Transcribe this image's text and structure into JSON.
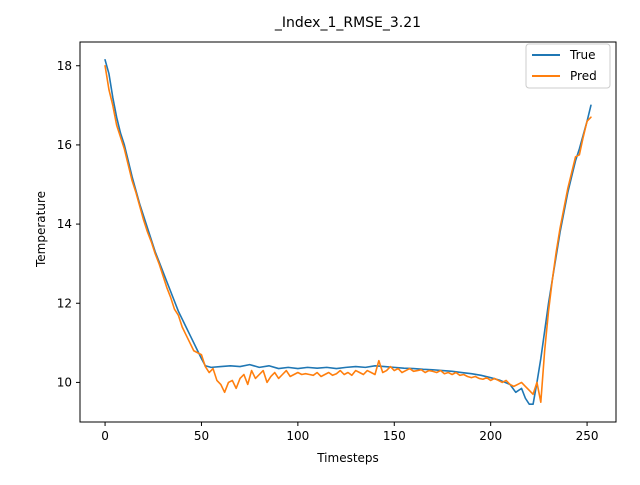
{
  "chart_data": {
    "type": "line",
    "title": "_Index_1_RMSE_3.21",
    "xlabel": "Timesteps",
    "ylabel": "Temperature",
    "xlim": [
      -13,
      265
    ],
    "ylim": [
      9.0,
      18.6
    ],
    "xticks": [
      0,
      50,
      100,
      150,
      200,
      250
    ],
    "yticks": [
      10,
      12,
      14,
      16,
      18
    ],
    "grid": false,
    "legend_position": "top-right",
    "series": [
      {
        "name": "True",
        "color": "#1f77b4",
        "points": [
          [
            0,
            18.15
          ],
          [
            2,
            17.8
          ],
          [
            4,
            17.2
          ],
          [
            6,
            16.7
          ],
          [
            8,
            16.3
          ],
          [
            10,
            16.0
          ],
          [
            12,
            15.6
          ],
          [
            14,
            15.2
          ],
          [
            16,
            14.85
          ],
          [
            18,
            14.5
          ],
          [
            20,
            14.2
          ],
          [
            22,
            13.9
          ],
          [
            24,
            13.6
          ],
          [
            26,
            13.3
          ],
          [
            28,
            13.05
          ],
          [
            30,
            12.8
          ],
          [
            32,
            12.55
          ],
          [
            34,
            12.3
          ],
          [
            36,
            12.05
          ],
          [
            38,
            11.8
          ],
          [
            40,
            11.6
          ],
          [
            42,
            11.4
          ],
          [
            44,
            11.2
          ],
          [
            46,
            11.0
          ],
          [
            48,
            10.8
          ],
          [
            50,
            10.6
          ],
          [
            52,
            10.42
          ],
          [
            55,
            10.38
          ],
          [
            60,
            10.4
          ],
          [
            65,
            10.42
          ],
          [
            70,
            10.4
          ],
          [
            75,
            10.45
          ],
          [
            80,
            10.38
          ],
          [
            85,
            10.42
          ],
          [
            90,
            10.35
          ],
          [
            95,
            10.38
          ],
          [
            100,
            10.35
          ],
          [
            105,
            10.38
          ],
          [
            110,
            10.36
          ],
          [
            115,
            10.38
          ],
          [
            120,
            10.35
          ],
          [
            125,
            10.38
          ],
          [
            130,
            10.4
          ],
          [
            135,
            10.38
          ],
          [
            140,
            10.42
          ],
          [
            145,
            10.4
          ],
          [
            150,
            10.38
          ],
          [
            155,
            10.36
          ],
          [
            160,
            10.35
          ],
          [
            165,
            10.33
          ],
          [
            170,
            10.32
          ],
          [
            175,
            10.3
          ],
          [
            180,
            10.28
          ],
          [
            185,
            10.25
          ],
          [
            190,
            10.22
          ],
          [
            195,
            10.18
          ],
          [
            200,
            10.12
          ],
          [
            205,
            10.05
          ],
          [
            210,
            9.95
          ],
          [
            213,
            9.75
          ],
          [
            216,
            9.85
          ],
          [
            218,
            9.6
          ],
          [
            220,
            9.45
          ],
          [
            222,
            9.45
          ],
          [
            224,
            10.0
          ],
          [
            226,
            10.6
          ],
          [
            228,
            11.3
          ],
          [
            230,
            12.0
          ],
          [
            232,
            12.6
          ],
          [
            234,
            13.2
          ],
          [
            236,
            13.8
          ],
          [
            238,
            14.3
          ],
          [
            240,
            14.8
          ],
          [
            242,
            15.2
          ],
          [
            244,
            15.6
          ],
          [
            246,
            15.9
          ],
          [
            248,
            16.25
          ],
          [
            250,
            16.6
          ],
          [
            252,
            17.0
          ]
        ]
      },
      {
        "name": "Pred",
        "color": "#ff7f0e",
        "points": [
          [
            0,
            18.0
          ],
          [
            2,
            17.4
          ],
          [
            4,
            17.0
          ],
          [
            6,
            16.5
          ],
          [
            8,
            16.2
          ],
          [
            10,
            15.9
          ],
          [
            12,
            15.5
          ],
          [
            14,
            15.1
          ],
          [
            16,
            14.8
          ],
          [
            18,
            14.45
          ],
          [
            20,
            14.1
          ],
          [
            22,
            13.8
          ],
          [
            24,
            13.55
          ],
          [
            26,
            13.25
          ],
          [
            28,
            13.0
          ],
          [
            30,
            12.7
          ],
          [
            32,
            12.4
          ],
          [
            34,
            12.15
          ],
          [
            36,
            11.85
          ],
          [
            38,
            11.7
          ],
          [
            40,
            11.4
          ],
          [
            42,
            11.2
          ],
          [
            44,
            11.0
          ],
          [
            46,
            10.8
          ],
          [
            48,
            10.75
          ],
          [
            50,
            10.7
          ],
          [
            52,
            10.4
          ],
          [
            54,
            10.25
          ],
          [
            56,
            10.35
          ],
          [
            58,
            10.05
          ],
          [
            60,
            9.95
          ],
          [
            62,
            9.75
          ],
          [
            64,
            10.0
          ],
          [
            66,
            10.05
          ],
          [
            68,
            9.85
          ],
          [
            70,
            10.1
          ],
          [
            72,
            10.2
          ],
          [
            74,
            9.95
          ],
          [
            76,
            10.3
          ],
          [
            78,
            10.1
          ],
          [
            80,
            10.2
          ],
          [
            82,
            10.3
          ],
          [
            84,
            10.0
          ],
          [
            86,
            10.15
          ],
          [
            88,
            10.25
          ],
          [
            90,
            10.1
          ],
          [
            92,
            10.2
          ],
          [
            94,
            10.3
          ],
          [
            96,
            10.15
          ],
          [
            98,
            10.2
          ],
          [
            100,
            10.25
          ],
          [
            102,
            10.2
          ],
          [
            104,
            10.22
          ],
          [
            106,
            10.2
          ],
          [
            108,
            10.18
          ],
          [
            110,
            10.25
          ],
          [
            112,
            10.15
          ],
          [
            114,
            10.2
          ],
          [
            116,
            10.25
          ],
          [
            118,
            10.18
          ],
          [
            120,
            10.22
          ],
          [
            122,
            10.3
          ],
          [
            124,
            10.2
          ],
          [
            126,
            10.25
          ],
          [
            128,
            10.18
          ],
          [
            130,
            10.3
          ],
          [
            132,
            10.25
          ],
          [
            134,
            10.2
          ],
          [
            136,
            10.3
          ],
          [
            138,
            10.25
          ],
          [
            140,
            10.2
          ],
          [
            142,
            10.55
          ],
          [
            144,
            10.25
          ],
          [
            146,
            10.3
          ],
          [
            148,
            10.4
          ],
          [
            150,
            10.3
          ],
          [
            152,
            10.35
          ],
          [
            154,
            10.25
          ],
          [
            156,
            10.3
          ],
          [
            158,
            10.35
          ],
          [
            160,
            10.28
          ],
          [
            162,
            10.3
          ],
          [
            164,
            10.32
          ],
          [
            166,
            10.25
          ],
          [
            168,
            10.3
          ],
          [
            170,
            10.28
          ],
          [
            172,
            10.25
          ],
          [
            174,
            10.3
          ],
          [
            176,
            10.22
          ],
          [
            178,
            10.25
          ],
          [
            180,
            10.2
          ],
          [
            182,
            10.25
          ],
          [
            184,
            10.18
          ],
          [
            186,
            10.2
          ],
          [
            188,
            10.15
          ],
          [
            190,
            10.12
          ],
          [
            192,
            10.15
          ],
          [
            194,
            10.1
          ],
          [
            196,
            10.08
          ],
          [
            198,
            10.12
          ],
          [
            200,
            10.05
          ],
          [
            202,
            10.1
          ],
          [
            204,
            10.05
          ],
          [
            206,
            10.0
          ],
          [
            208,
            10.05
          ],
          [
            210,
            9.95
          ],
          [
            212,
            9.9
          ],
          [
            214,
            9.95
          ],
          [
            216,
            10.0
          ],
          [
            218,
            9.9
          ],
          [
            220,
            9.8
          ],
          [
            222,
            9.7
          ],
          [
            224,
            10.0
          ],
          [
            226,
            9.5
          ],
          [
            228,
            10.8
          ],
          [
            230,
            11.8
          ],
          [
            232,
            12.6
          ],
          [
            234,
            13.3
          ],
          [
            236,
            13.9
          ],
          [
            238,
            14.4
          ],
          [
            240,
            14.9
          ],
          [
            242,
            15.3
          ],
          [
            244,
            15.7
          ],
          [
            246,
            15.75
          ],
          [
            248,
            16.2
          ],
          [
            250,
            16.6
          ],
          [
            252,
            16.7
          ]
        ]
      }
    ]
  }
}
